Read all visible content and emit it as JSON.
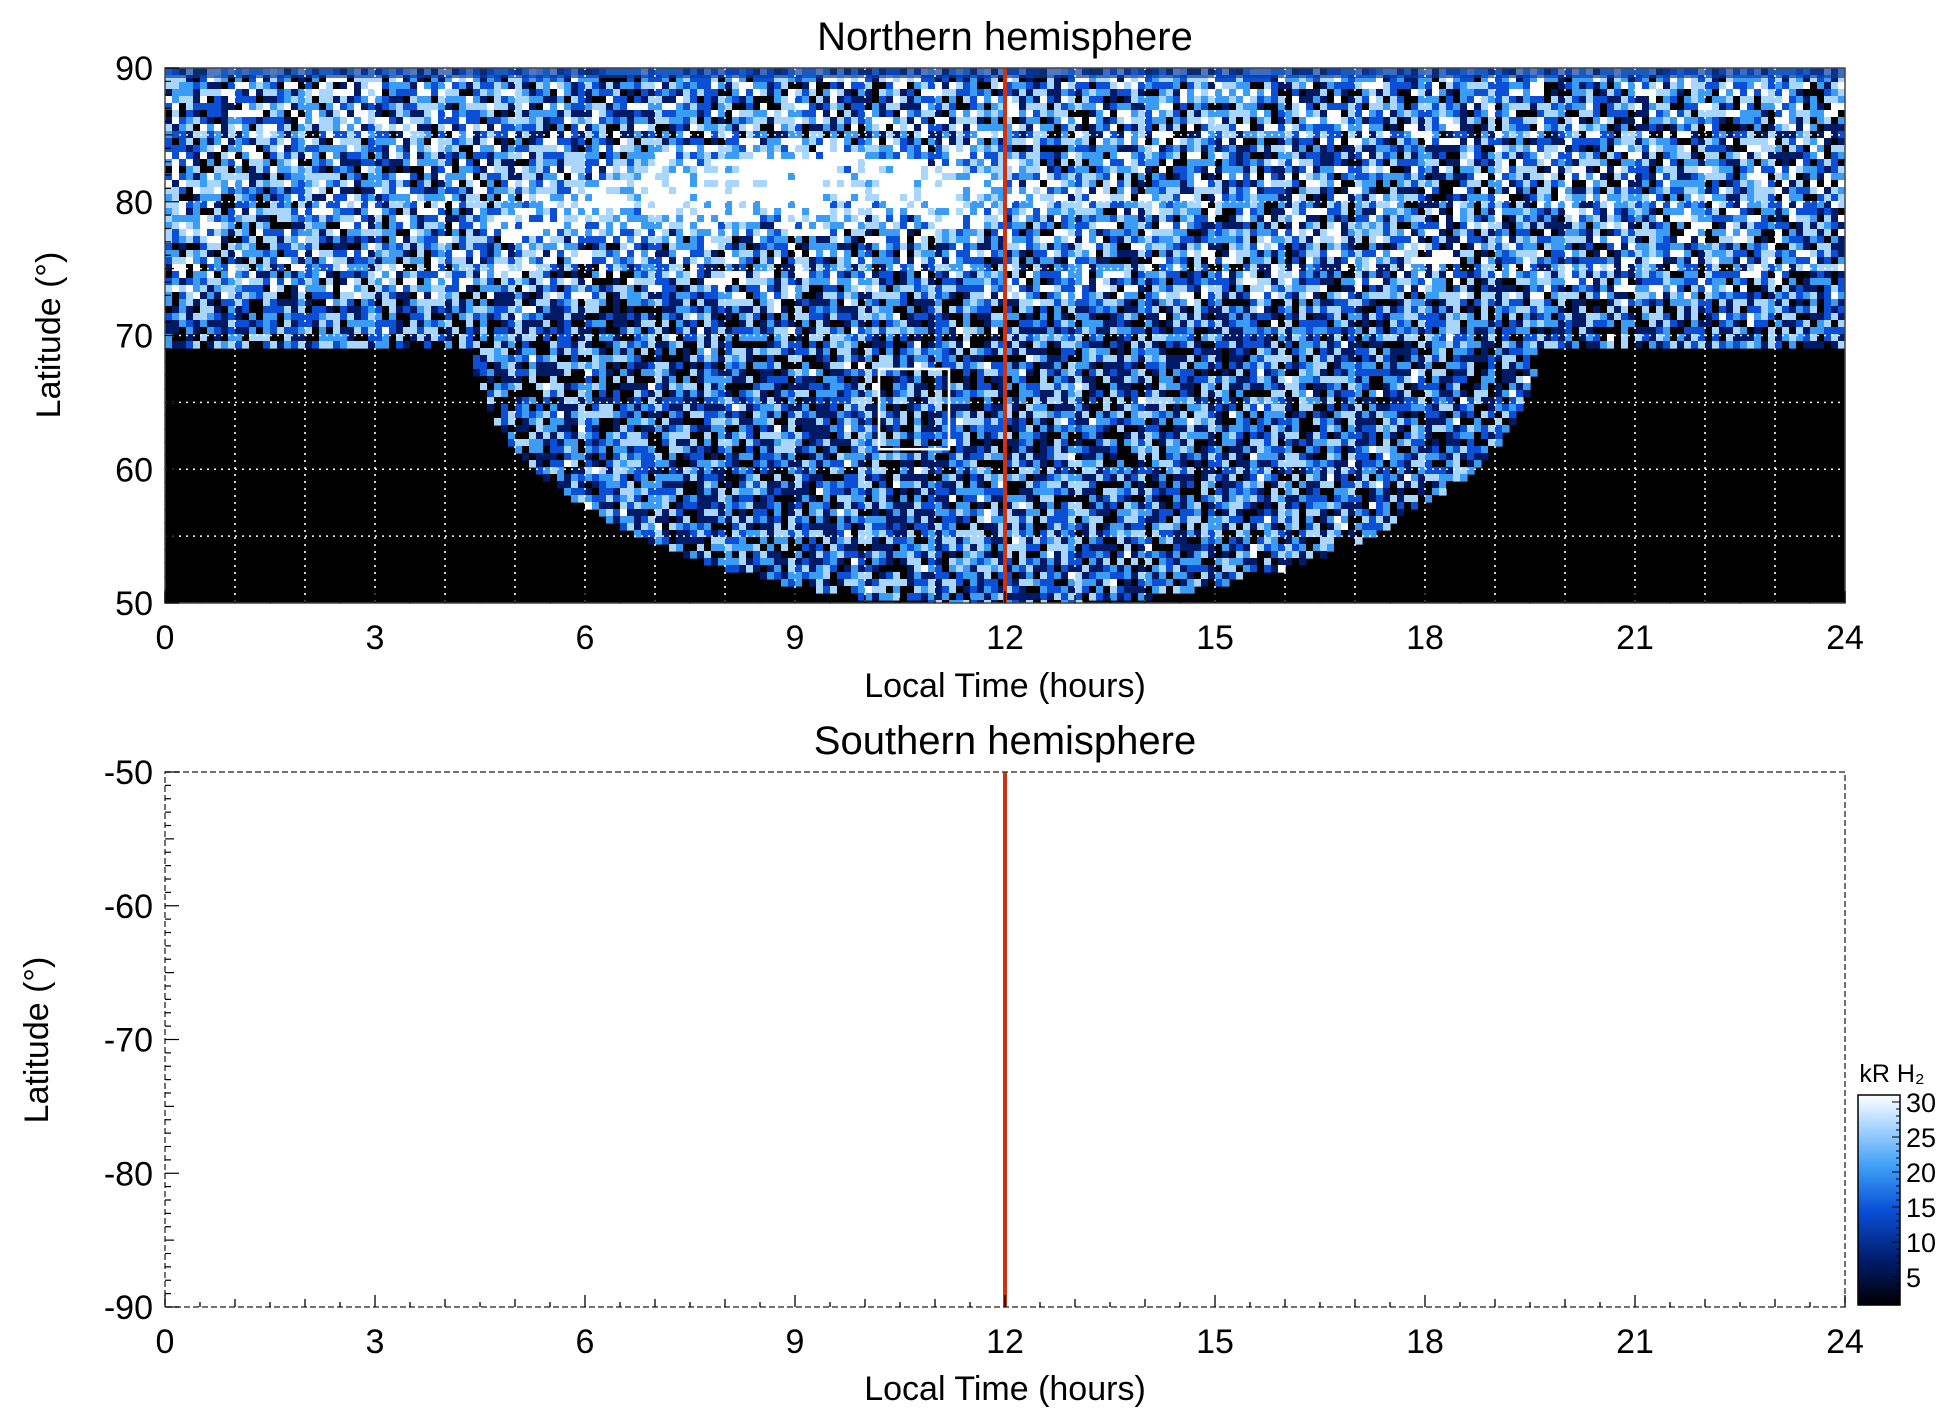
{
  "chart_data": [
    {
      "type": "heatmap",
      "title": "Northern hemisphere",
      "xlabel": "Local Time (hours)",
      "ylabel": "Latitude (°)",
      "xlim": [
        0,
        24
      ],
      "ylim": [
        50,
        90
      ],
      "xticks": [
        "0",
        "3",
        "6",
        "9",
        "12",
        "15",
        "18",
        "21",
        "24"
      ],
      "yticks": [
        "90",
        "80",
        "70",
        "60",
        "50"
      ],
      "grid": "dotted white, every 1 h and every 5°",
      "marker_line": {
        "x": 12,
        "color": "#cc3311"
      },
      "highlight_box": {
        "x": [
          10.2,
          11.2
        ],
        "y": [
          61.5,
          67.5
        ]
      },
      "regions": [
        {
          "name": "bright auroral arc",
          "x": [
            4,
            13.5
          ],
          "y": [
            77,
            86
          ]
        },
        {
          "name": "no data",
          "x": [
            0,
            4.5
          ],
          "y": [
            50,
            70
          ]
        },
        {
          "name": "no data",
          "x": [
            19.5,
            24
          ],
          "y": [
            50,
            70
          ]
        }
      ]
    },
    {
      "type": "heatmap",
      "title": "Southern hemisphere",
      "xlabel": "Local Time (hours)",
      "ylabel": "Latitude (°)",
      "xlim": [
        0,
        24
      ],
      "ylim": [
        -90,
        -50
      ],
      "xticks": [
        "0",
        "3",
        "6",
        "9",
        "12",
        "15",
        "18",
        "21",
        "24"
      ],
      "yticks": [
        "-50",
        "-60",
        "-70",
        "-80",
        "-90"
      ],
      "marker_line": {
        "x": 12,
        "color": "#cc3311"
      },
      "empty": true
    }
  ],
  "colorbar": {
    "label": "kR H₂",
    "ticks": [
      "30",
      "25",
      "20",
      "15",
      "10",
      "5"
    ],
    "range": [
      1,
      31
    ],
    "colors": [
      "#000000",
      "#001a66",
      "#0a4fd6",
      "#3a9cf5",
      "#a9d6ff",
      "#ffffff"
    ]
  }
}
